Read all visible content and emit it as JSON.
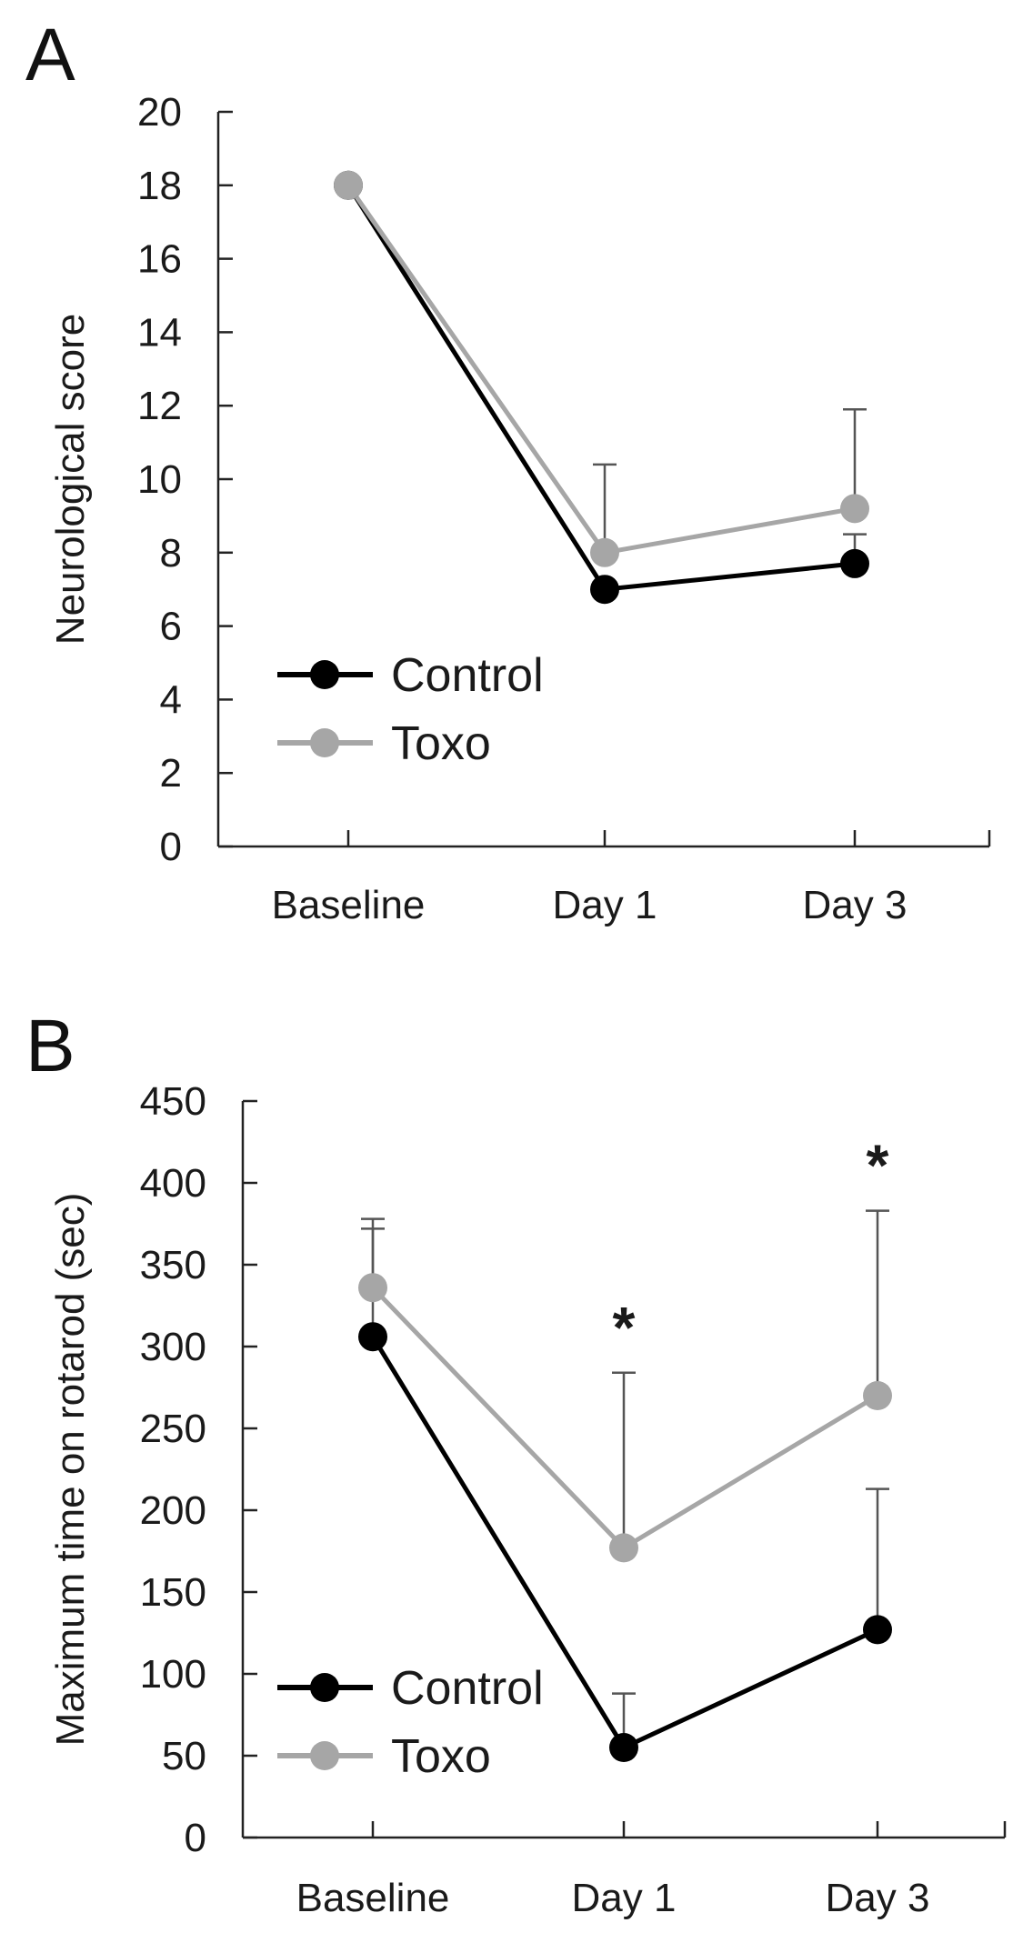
{
  "chart_data": [
    {
      "type": "line",
      "panel": "A",
      "ylabel": "Neurological score",
      "xlabel": "",
      "ylim": [
        0,
        20
      ],
      "yticks": [
        "0",
        "2",
        "4",
        "6",
        "8",
        "10",
        "12",
        "14",
        "16",
        "18",
        "20"
      ],
      "categories": [
        "Baseline",
        "Day 1",
        "Day 3"
      ],
      "series": [
        {
          "name": "Control",
          "color": "#000000",
          "values": [
            18,
            7.0,
            7.7
          ],
          "error_upper": [
            null,
            null,
            8.5
          ]
        },
        {
          "name": "Toxo",
          "color": "#a6a6a6",
          "values": [
            18,
            8.0,
            9.2
          ],
          "error_upper": [
            null,
            10.4,
            11.9
          ]
        }
      ],
      "annotations": [],
      "legend": {
        "position": "bottom-left",
        "entries": [
          "Control",
          "Toxo"
        ]
      }
    },
    {
      "type": "line",
      "panel": "B",
      "ylabel": "Maximum time on rotarod (sec)",
      "xlabel": "",
      "ylim": [
        0,
        450
      ],
      "yticks": [
        "0",
        "50",
        "100",
        "150",
        "200",
        "250",
        "300",
        "350",
        "400",
        "450"
      ],
      "categories": [
        "Baseline",
        "Day 1",
        "Day 3"
      ],
      "series": [
        {
          "name": "Control",
          "color": "#000000",
          "values": [
            306,
            55,
            127
          ],
          "error_upper": [
            372,
            88,
            213
          ]
        },
        {
          "name": "Toxo",
          "color": "#a6a6a6",
          "values": [
            336,
            177,
            270
          ],
          "error_upper": [
            378,
            284,
            383
          ]
        }
      ],
      "annotations": [
        {
          "category": "Day 1",
          "text": "*"
        },
        {
          "category": "Day 3",
          "text": "*"
        }
      ],
      "legend": {
        "position": "bottom-left",
        "entries": [
          "Control",
          "Toxo"
        ]
      }
    }
  ]
}
